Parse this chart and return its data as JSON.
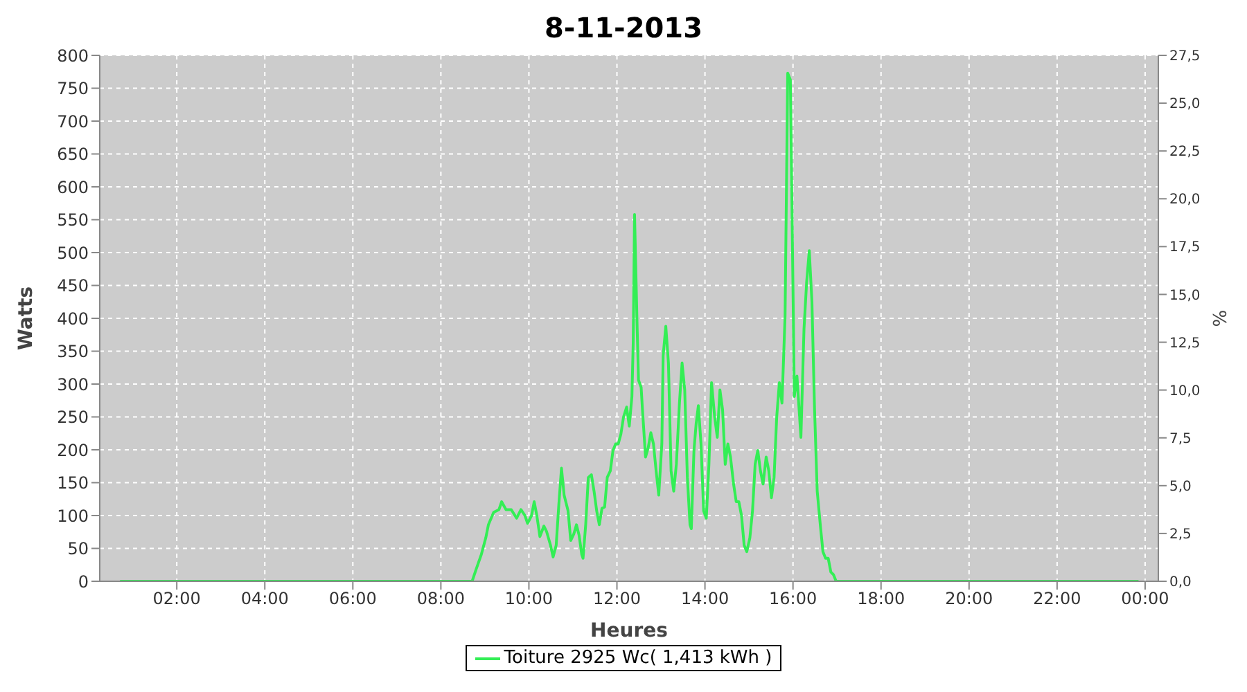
{
  "chart_data": {
    "type": "line",
    "title": "8-11-2013",
    "xlabel": "Heures",
    "ylabel": "Watts",
    "y2label": "%",
    "x": [
      0.71,
      8.71,
      8.8,
      8.92,
      9.02,
      9.08,
      9.2,
      9.32,
      9.38,
      9.48,
      9.6,
      9.72,
      9.82,
      9.91,
      9.97,
      10.06,
      10.12,
      10.18,
      10.25,
      10.34,
      10.4,
      10.49,
      10.55,
      10.62,
      10.68,
      10.74,
      10.8,
      10.89,
      10.95,
      11.02,
      11.08,
      11.14,
      11.2,
      11.23,
      11.29,
      11.35,
      11.42,
      11.48,
      11.54,
      11.6,
      11.66,
      11.72,
      11.78,
      11.85,
      11.91,
      11.97,
      12.03,
      12.09,
      12.15,
      12.22,
      12.28,
      12.34,
      12.37,
      12.4,
      12.46,
      12.49,
      12.55,
      12.58,
      12.65,
      12.71,
      12.77,
      12.83,
      12.89,
      12.95,
      13.02,
      13.05,
      13.11,
      13.17,
      13.23,
      13.29,
      13.35,
      13.42,
      13.48,
      13.54,
      13.6,
      13.66,
      13.69,
      13.75,
      13.8,
      13.85,
      13.91,
      13.97,
      14.03,
      14.09,
      14.15,
      14.22,
      14.28,
      14.34,
      14.4,
      14.46,
      14.52,
      14.58,
      14.65,
      14.71,
      14.77,
      14.83,
      14.89,
      14.95,
      15.02,
      15.08,
      15.14,
      15.2,
      15.26,
      15.32,
      15.39,
      15.45,
      15.51,
      15.57,
      15.63,
      15.69,
      15.75,
      15.82,
      15.88,
      15.94,
      16.0,
      16.03,
      16.09,
      16.15,
      16.18,
      16.25,
      16.31,
      16.37,
      16.43,
      16.49,
      16.55,
      16.62,
      16.68,
      16.74,
      16.8,
      16.86,
      16.92,
      16.98,
      23.85
    ],
    "series": [
      {
        "name": "Toiture 2925 Wc( 1,413 kWh )",
        "color": "#33ee55",
        "values": [
          0,
          0,
          18,
          41,
          66,
          86,
          105,
          109,
          121,
          109,
          109,
          96,
          109,
          100,
          88,
          100,
          121,
          100,
          68,
          84,
          76,
          55,
          37,
          55,
          117,
          172,
          131,
          107,
          62,
          72,
          86,
          70,
          41,
          35,
          86,
          158,
          162,
          137,
          107,
          86,
          111,
          113,
          158,
          168,
          199,
          209,
          209,
          224,
          250,
          265,
          236,
          281,
          363,
          558,
          384,
          306,
          295,
          261,
          189,
          203,
          226,
          209,
          168,
          131,
          209,
          343,
          388,
          332,
          168,
          137,
          178,
          271,
          332,
          291,
          158,
          86,
          80,
          199,
          240,
          267,
          209,
          107,
          96,
          178,
          302,
          250,
          219,
          291,
          261,
          178,
          209,
          189,
          148,
          121,
          121,
          100,
          55,
          45,
          66,
          107,
          178,
          199,
          168,
          148,
          189,
          168,
          127,
          158,
          250,
          302,
          271,
          404,
          773,
          763,
          445,
          281,
          312,
          250,
          219,
          384,
          455,
          503,
          425,
          261,
          137,
          86,
          45,
          35,
          35,
          14,
          10,
          0,
          0
        ]
      }
    ],
    "xlim": [
      0.25,
      24.3
    ],
    "xticks": [
      {
        "value": 2,
        "label": "02:00"
      },
      {
        "value": 4,
        "label": "04:00"
      },
      {
        "value": 6,
        "label": "06:00"
      },
      {
        "value": 8,
        "label": "08:00"
      },
      {
        "value": 10,
        "label": "10:00"
      },
      {
        "value": 12,
        "label": "12:00"
      },
      {
        "value": 14,
        "label": "14:00"
      },
      {
        "value": 16,
        "label": "16:00"
      },
      {
        "value": 18,
        "label": "18:00"
      },
      {
        "value": 20,
        "label": "20:00"
      },
      {
        "value": 22,
        "label": "22:00"
      },
      {
        "value": 24,
        "label": "00:00"
      }
    ],
    "ylim": [
      0,
      800
    ],
    "yticks": [
      0,
      50,
      100,
      150,
      200,
      250,
      300,
      350,
      400,
      450,
      500,
      550,
      600,
      650,
      700,
      750,
      800
    ],
    "y2lim": [
      0,
      27.5
    ],
    "y2ticks": [
      {
        "value": 0,
        "label": "0,0"
      },
      {
        "value": 2.5,
        "label": "2,5"
      },
      {
        "value": 5,
        "label": "5,0"
      },
      {
        "value": 7.5,
        "label": "7,5"
      },
      {
        "value": 10,
        "label": "10,0"
      },
      {
        "value": 12.5,
        "label": "12,5"
      },
      {
        "value": 15,
        "label": "15,0"
      },
      {
        "value": 17.5,
        "label": "17,5"
      },
      {
        "value": 20,
        "label": "20,0"
      },
      {
        "value": 22.5,
        "label": "22,5"
      },
      {
        "value": 25,
        "label": "25,0"
      },
      {
        "value": 27.5,
        "label": "27,5"
      }
    ],
    "grid": true,
    "legend": "bottom"
  }
}
